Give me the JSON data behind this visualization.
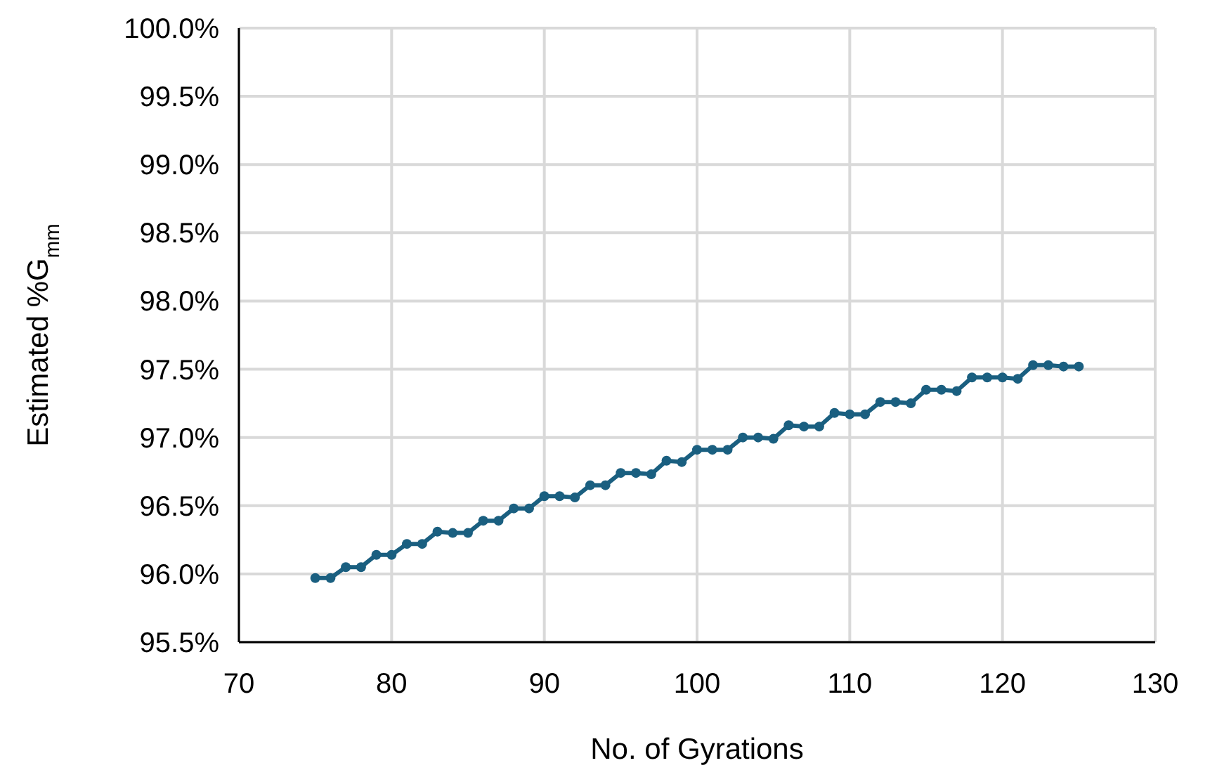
{
  "chart_data": {
    "type": "line",
    "xlabel": "No. of Gyrations",
    "ylabel": "Estimated %G$_{mm}$",
    "x": [
      75,
      76,
      77,
      78,
      79,
      80,
      81,
      82,
      83,
      84,
      85,
      86,
      87,
      88,
      89,
      90,
      91,
      92,
      93,
      94,
      95,
      96,
      97,
      98,
      99,
      100,
      101,
      102,
      103,
      104,
      105,
      106,
      107,
      108,
      109,
      110,
      111,
      112,
      113,
      114,
      115,
      116,
      117,
      118,
      119,
      120,
      121,
      122,
      123,
      124,
      125
    ],
    "series": [
      {
        "color": "#1a5f80",
        "values": [
          95.97,
          95.97,
          96.05,
          96.05,
          96.14,
          96.14,
          96.22,
          96.22,
          96.31,
          96.3,
          96.3,
          96.39,
          96.39,
          96.48,
          96.48,
          96.57,
          96.57,
          96.56,
          96.65,
          96.65,
          96.74,
          96.74,
          96.73,
          96.83,
          96.82,
          96.91,
          96.91,
          96.91,
          97.0,
          97.0,
          96.99,
          97.09,
          97.08,
          97.08,
          97.18,
          97.17,
          97.17,
          97.26,
          97.26,
          97.25,
          97.35,
          97.35,
          97.34,
          97.44,
          97.44,
          97.44,
          97.43,
          97.53,
          97.53,
          97.52,
          97.52
        ]
      }
    ],
    "xlim": [
      70,
      130
    ],
    "xticks": [
      70,
      80,
      90,
      100,
      110,
      120,
      130
    ],
    "ylim": [
      95.5,
      100
    ],
    "yticks": [
      {
        "value": 95.5,
        "label": "95.5%"
      },
      {
        "value": 96,
        "label": "96.0%"
      },
      {
        "value": 96.5,
        "label": "96.5%"
      },
      {
        "value": 97,
        "label": "97.0%"
      },
      {
        "value": 97.5,
        "label": "97.5%"
      },
      {
        "value": 98,
        "label": "98.0%"
      },
      {
        "value": 98.5,
        "label": "98.5%"
      },
      {
        "value": 99,
        "label": "99.0%"
      },
      {
        "value": 99.5,
        "label": "99.5%"
      },
      {
        "value": 100,
        "label": "100.0%"
      }
    ],
    "grid": true,
    "marker": "circle",
    "line_style": "solid"
  }
}
